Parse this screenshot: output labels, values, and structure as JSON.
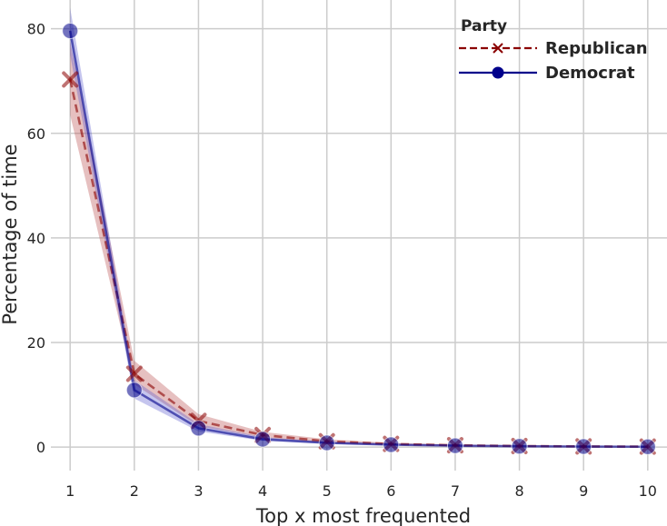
{
  "chart_data": {
    "type": "line",
    "xlabel": "Top x most frequented",
    "ylabel": "Percentage of time",
    "x": [
      1,
      2,
      3,
      4,
      5,
      6,
      7,
      8,
      9,
      10
    ],
    "xlim": [
      0.7,
      10.3
    ],
    "ylim": [
      -4.5,
      85.5
    ],
    "yticks": [
      0,
      20,
      40,
      60,
      80
    ],
    "grid": true,
    "legend": {
      "title": "Party",
      "placement": "top-right"
    },
    "series": [
      {
        "name": "Republican",
        "color": "#8b0000",
        "marker": "x",
        "linestyle": "dashed",
        "band_color": "#b84a4a",
        "values": [
          70.3,
          14.0,
          5.0,
          2.3,
          1.1,
          0.6,
          0.35,
          0.2,
          0.12,
          0.08
        ],
        "ci_low": [
          63.5,
          12.0,
          4.0,
          1.8,
          0.8,
          0.4,
          0.22,
          0.12,
          0.07,
          0.04
        ],
        "ci_high": [
          77.5,
          16.5,
          6.3,
          2.9,
          1.5,
          0.8,
          0.5,
          0.3,
          0.18,
          0.12
        ]
      },
      {
        "name": "Democrat",
        "color": "#00008b",
        "marker": "circle",
        "linestyle": "solid",
        "band_color": "#5a5acd",
        "values": [
          79.6,
          10.9,
          3.6,
          1.5,
          0.8,
          0.45,
          0.26,
          0.15,
          0.1,
          0.06
        ],
        "ci_low": [
          75.0,
          9.3,
          3.0,
          1.2,
          0.6,
          0.32,
          0.18,
          0.1,
          0.06,
          0.03
        ],
        "ci_high": [
          84.0,
          12.8,
          4.4,
          1.9,
          1.0,
          0.6,
          0.36,
          0.22,
          0.15,
          0.1
        ]
      }
    ]
  }
}
